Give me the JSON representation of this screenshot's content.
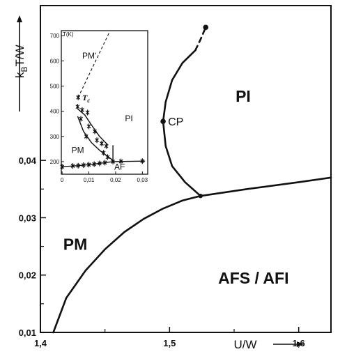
{
  "chart_data": [
    {
      "type": "line",
      "xlabel": "U/W",
      "ylabel_main": "k",
      "ylabel_sub": "B",
      "ylabel_tail": "T/W",
      "xlim": [
        1.4,
        1.625
      ],
      "ylim": [
        0.01,
        0.067
      ],
      "x_ticks": [
        {
          "value": 1.4,
          "label": "1,4"
        },
        {
          "value": 1.5,
          "label": "1,5"
        },
        {
          "value": 1.6,
          "label": "1,6"
        }
      ],
      "y_ticks": [
        {
          "value": 0.01,
          "label": "0,01"
        },
        {
          "value": 0.02,
          "label": "0,02"
        },
        {
          "value": 0.03,
          "label": "0,03"
        },
        {
          "value": 0.04,
          "label": "0,04"
        }
      ],
      "regions": [
        {
          "name": "PI",
          "x": 1.557,
          "y": 0.0502
        },
        {
          "name": "PM",
          "x": 1.427,
          "y": 0.0244
        },
        {
          "name": "AFS / AFI",
          "x": 1.565,
          "y": 0.0185
        }
      ],
      "points": [
        {
          "name": "CP",
          "x": 1.495,
          "y": 0.0468
        },
        {
          "name": "",
          "x": 1.524,
          "y": 0.0338
        },
        {
          "name": "",
          "x": 1.528,
          "y": 0.0632
        }
      ],
      "series": [
        {
          "id": "metal-insulator-boundary",
          "style": "solid",
          "x": [
            1.524,
            1.512,
            1.502,
            1.497,
            1.495,
            1.497,
            1.502,
            1.51,
            1.52
          ],
          "y": [
            0.0338,
            0.0362,
            0.039,
            0.0425,
            0.0468,
            0.0502,
            0.054,
            0.057,
            0.0592
          ]
        },
        {
          "id": "metal-insulator-boundary-extension",
          "style": "dashed",
          "x": [
            1.52,
            1.524,
            1.528
          ],
          "y": [
            0.0592,
            0.0611,
            0.0632
          ]
        },
        {
          "id": "antiferromagnetic-boundary",
          "style": "solid",
          "x": [
            1.41,
            1.42,
            1.435,
            1.45,
            1.465,
            1.48,
            1.495,
            1.51,
            1.524
          ],
          "y": [
            0.01,
            0.016,
            0.0208,
            0.0245,
            0.0275,
            0.0298,
            0.0316,
            0.033,
            0.0338
          ]
        },
        {
          "id": "insulator-antiferro-boundary",
          "style": "solid",
          "x": [
            1.524,
            1.56,
            1.6,
            1.625
          ],
          "y": [
            0.0338,
            0.035,
            0.0362,
            0.037
          ]
        }
      ]
    },
    {
      "type": "line",
      "ylabel": "T(K)",
      "xlim": [
        -0.0003,
        0.032
      ],
      "ylim": [
        150,
        720
      ],
      "x_ticks": [
        {
          "value": 0,
          "label": "0"
        },
        {
          "value": 0.01,
          "label": "0,01"
        },
        {
          "value": 0.02,
          "label": "0,02"
        },
        {
          "value": 0.03,
          "label": "0,03"
        }
      ],
      "y_ticks": [
        {
          "value": 200,
          "label": "200"
        },
        {
          "value": 300,
          "label": "300"
        },
        {
          "value": 400,
          "label": "400"
        },
        {
          "value": 500,
          "label": "500"
        },
        {
          "value": 600,
          "label": "600"
        },
        {
          "value": 700,
          "label": "700"
        }
      ],
      "labels": [
        {
          "text": "PM'",
          "x": 0.0075,
          "y": 610
        },
        {
          "text": "PI",
          "x": 0.0235,
          "y": 360
        },
        {
          "text": "PM",
          "x": 0.0035,
          "y": 235
        },
        {
          "text": "AF",
          "x": 0.0195,
          "y": 168
        }
      ],
      "tc_label": {
        "text": "T",
        "sub": "c",
        "x": 0.0075,
        "y": 443
      },
      "series": [
        {
          "id": "tc-extrapolation",
          "style": "dashed",
          "x": [
            0.006,
            0.0175
          ],
          "y": [
            455,
            710
          ]
        },
        {
          "id": "pm-pi-upper",
          "style": "solid",
          "x": [
            0.0058,
            0.0085,
            0.011,
            0.014,
            0.0172
          ],
          "y": [
            410,
            385,
            345,
            300,
            265
          ]
        },
        {
          "id": "pm-pi-lower",
          "style": "solid",
          "x": [
            0.0058,
            0.008,
            0.011,
            0.014,
            0.0165,
            0.019
          ],
          "y": [
            380,
            320,
            275,
            245,
            225,
            205
          ]
        },
        {
          "id": "pi-af-vertical",
          "style": "solid",
          "x": [
            0.019,
            0.019
          ],
          "y": [
            200,
            265
          ]
        },
        {
          "id": "af-boundary",
          "style": "solid",
          "x": [
            0.0,
            0.006,
            0.01,
            0.014,
            0.019,
            0.025,
            0.031
          ],
          "y": [
            180,
            184,
            188,
            193,
            200,
            201,
            202
          ]
        }
      ],
      "markers": [
        {
          "x": 0.006,
          "y": 455
        },
        {
          "x": 0.0058,
          "y": 418
        },
        {
          "x": 0.0075,
          "y": 405
        },
        {
          "x": 0.0095,
          "y": 395
        },
        {
          "x": 0.007,
          "y": 370
        },
        {
          "x": 0.01,
          "y": 340
        },
        {
          "x": 0.0122,
          "y": 320
        },
        {
          "x": 0.009,
          "y": 300
        },
        {
          "x": 0.013,
          "y": 285
        },
        {
          "x": 0.0148,
          "y": 272
        },
        {
          "x": 0.0165,
          "y": 262
        },
        {
          "x": 0.0155,
          "y": 235
        },
        {
          "x": 0.017,
          "y": 218
        },
        {
          "x": 0.0,
          "y": 180
        },
        {
          "x": 0.004,
          "y": 183
        },
        {
          "x": 0.006,
          "y": 184
        },
        {
          "x": 0.008,
          "y": 186
        },
        {
          "x": 0.01,
          "y": 188
        },
        {
          "x": 0.012,
          "y": 190
        },
        {
          "x": 0.014,
          "y": 193
        },
        {
          "x": 0.016,
          "y": 196
        },
        {
          "x": 0.019,
          "y": 200
        },
        {
          "x": 0.022,
          "y": 201
        },
        {
          "x": 0.03,
          "y": 202
        }
      ]
    }
  ]
}
